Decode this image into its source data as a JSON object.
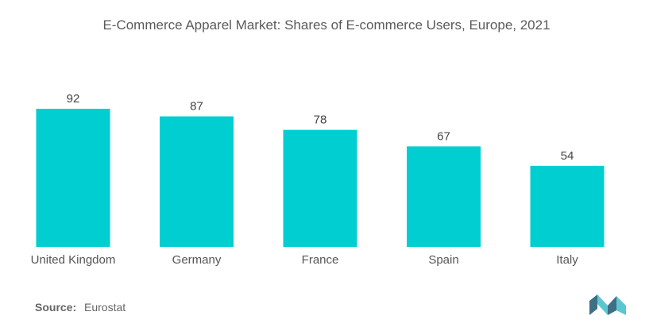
{
  "title": "E-Commerce Apparel Market: Shares of E-commerce Users, Europe, 2021",
  "source": {
    "label": "Source:",
    "value": "Eurostat"
  },
  "colors": {
    "bar": "#00CED1",
    "text": "#555555",
    "logo_dark": "#3f6f84",
    "logo_light": "#5cc7d0"
  },
  "logo": {
    "icon": "mordor-intelligence-logo-icon"
  },
  "chart_data": {
    "type": "bar",
    "categories": [
      "United Kingdom",
      "Germany",
      "France",
      "Spain",
      "Italy"
    ],
    "values": [
      92,
      87,
      78,
      67,
      54
    ],
    "title": "E-Commerce Apparel Market: Shares of E-commerce Users, Europe, 2021",
    "xlabel": "",
    "ylabel": "",
    "ylim": [
      0,
      100
    ],
    "grid": false,
    "legend": "none",
    "data_labels": true
  }
}
